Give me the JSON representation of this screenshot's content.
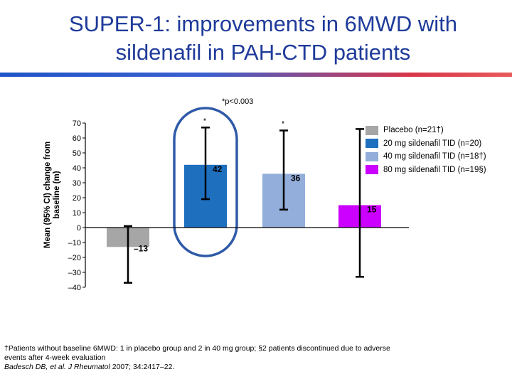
{
  "title": {
    "line1": "SUPER-1: improvements in 6MWD with",
    "line2": "sildenafil in PAH-CTD patients"
  },
  "significance_note": "*p<0.003",
  "footnote": {
    "line1": "†Patients without baseline 6MWD: 1 in placebo group and 2 in 40 mg group; §2 patients discontinued due to adverse",
    "line2": "events after 4-week evaluation",
    "reference_prefix": "Badesch DB, et al. J Rheumatol ",
    "reference_suffix": "2007; 34:2417–22."
  },
  "colors": {
    "accent_start": "#1f55c8",
    "accent_end": "#e85a5a",
    "highlight_ring": "#2f5aa8"
  },
  "chart_data": {
    "type": "bar",
    "ylabel": "Mean (95% CI) change from baseline (m)",
    "ylim": [
      -40,
      70
    ],
    "yticks": [
      70,
      60,
      50,
      40,
      30,
      20,
      10,
      0,
      -10,
      -20,
      -30,
      -40
    ],
    "ytick_labels": [
      "70",
      "60",
      "50",
      "40",
      "30",
      "20",
      "10",
      "0",
      "–10",
      "–20",
      "–30",
      "–40"
    ],
    "categories": [
      "Placebo (n=21†)",
      "20 mg sildenafil TID (n=20)",
      "40 mg sildenafil TID (n=18†)",
      "80 mg sildenafil TID (n=19§)"
    ],
    "values": [
      -13,
      42,
      36,
      15
    ],
    "value_labels": [
      "–13",
      "42",
      "36",
      "15"
    ],
    "ci_lower": [
      -37,
      19,
      12,
      -33
    ],
    "ci_upper": [
      1,
      67,
      65,
      66
    ],
    "significance": [
      "",
      "*",
      "*",
      ""
    ],
    "colors": [
      "#a6a6a6",
      "#1f6fbf",
      "#93aedb",
      "#cc00ff"
    ],
    "legend": [
      "Placebo (n=21†)",
      "20 mg sildenafil TID (n=20)",
      "40 mg sildenafil TID (n=18†)",
      "80 mg sildenafil TID (n=19§)"
    ],
    "highlighted_category": "20 mg sildenafil TID (n=20)",
    "legend_position": "top-right",
    "grid": false
  }
}
